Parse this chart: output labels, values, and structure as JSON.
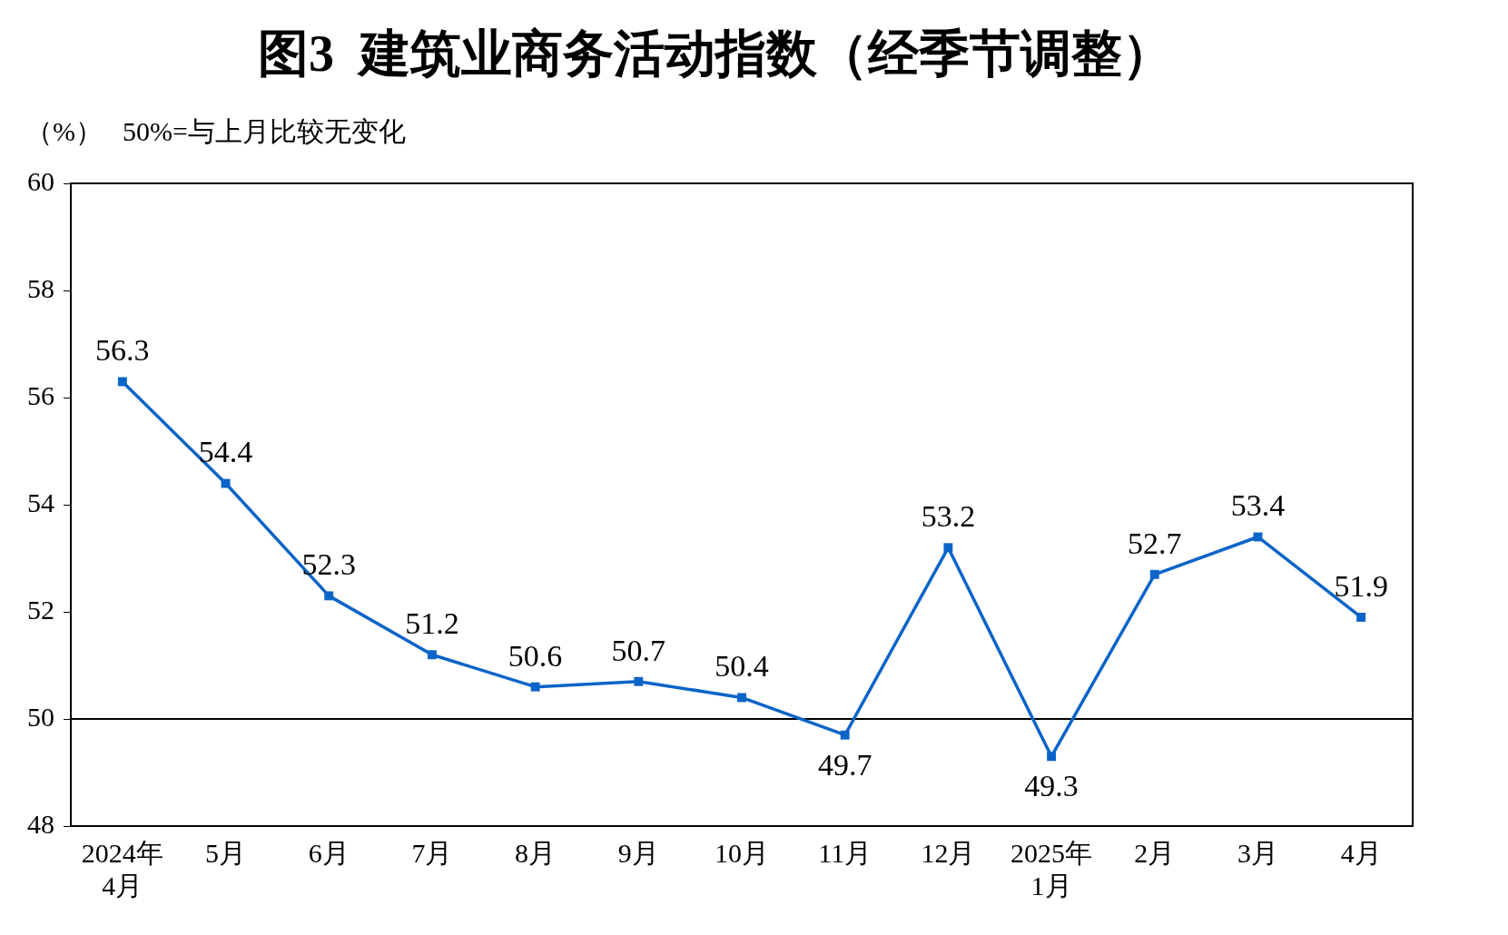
{
  "chart_data": {
    "type": "line",
    "title": "图3  建筑业商务活动指数（经季节调整）",
    "ylabel": "（%）",
    "annotations": [
      "50%=与上月比较无变化"
    ],
    "categories": [
      "2024年\n4月",
      "5月",
      "6月",
      "7月",
      "8月",
      "9月",
      "10月",
      "11月",
      "12月",
      "2025年\n1月",
      "2月",
      "3月",
      "4月"
    ],
    "series": [
      {
        "color": "#0b64c8",
        "values": [
          56.3,
          54.4,
          52.3,
          51.2,
          50.6,
          50.7,
          50.4,
          49.7,
          53.2,
          49.3,
          52.7,
          53.4,
          51.9
        ]
      }
    ],
    "ylim": [
      48,
      60
    ],
    "yticks": [
      48,
      50,
      52,
      54,
      56,
      58,
      60
    ],
    "ref_lines": [
      {
        "axis": "y",
        "value": 50,
        "color": "#000000"
      }
    ],
    "data_labels": true,
    "marker": "square",
    "line_style": "solid",
    "grid": false,
    "legend": false
  }
}
